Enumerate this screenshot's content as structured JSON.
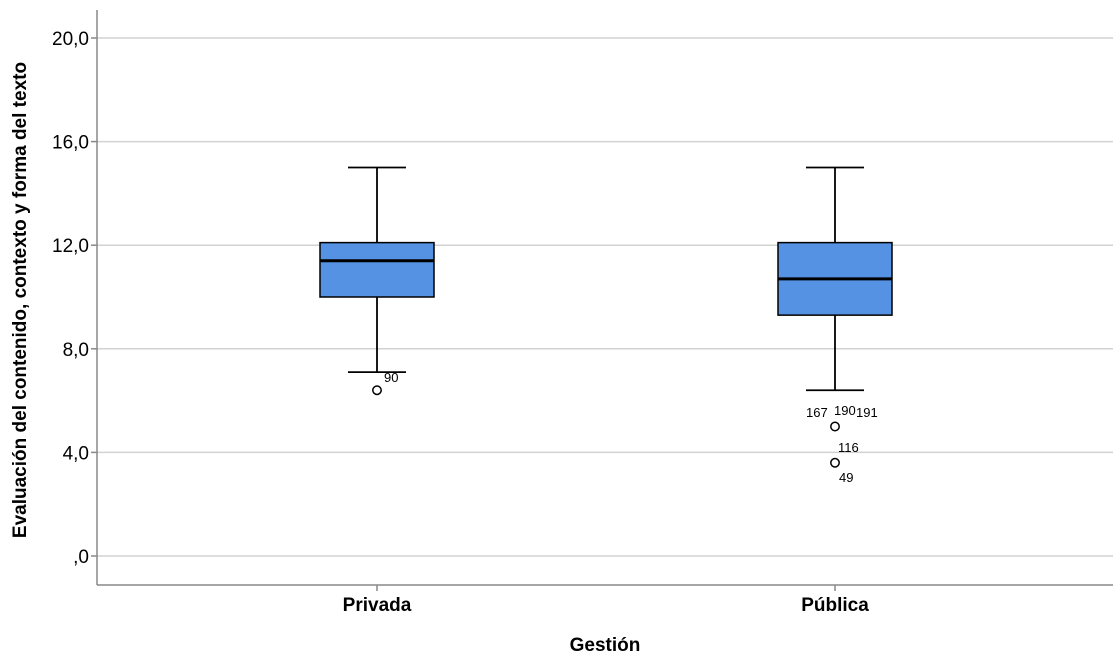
{
  "chart_data": {
    "type": "boxplot",
    "xlabel": "Gestión",
    "ylabel": "Evaluación del contenido, contexto y forma del texto",
    "ylim": [
      -1.1,
      21.1
    ],
    "yticks": [
      0,
      4,
      8,
      12,
      16,
      20
    ],
    "ytick_labels": [
      ",0",
      "4,0",
      "8,0",
      "12,0",
      "16,0",
      "20,0"
    ],
    "grid": "horizontal",
    "box_color": "#5592E3",
    "categories": [
      "Privada",
      "Pública"
    ],
    "boxes": [
      {
        "category": "Privada",
        "whisker_low": 7.1,
        "q1": 10.0,
        "median": 11.4,
        "q3": 12.1,
        "whisker_high": 15.0,
        "outliers": [
          {
            "value": 6.4,
            "label": "90"
          }
        ]
      },
      {
        "category": "Pública",
        "whisker_low": 6.4,
        "q1": 9.3,
        "median": 10.7,
        "q3": 12.1,
        "whisker_high": 15.0,
        "outliers": [
          {
            "value": 5.0,
            "labels": [
              "167",
              "190",
              "191"
            ]
          },
          {
            "value": 3.6,
            "labels": [
              "116",
              "49"
            ]
          }
        ]
      }
    ]
  }
}
